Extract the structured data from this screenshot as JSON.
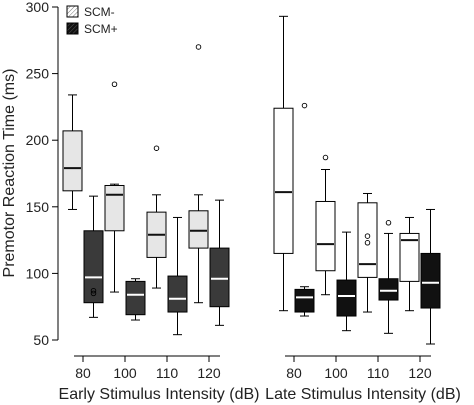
{
  "chart_data": {
    "type": "boxplot",
    "ylabel": "Premotor Reaction Time (ms)",
    "ylim": [
      50,
      300
    ],
    "yticks": [
      50,
      100,
      150,
      200,
      250,
      300
    ],
    "grid": false,
    "legend_position": "top-left",
    "legend": [
      {
        "name": "SCM-",
        "pattern": "hatched-light"
      },
      {
        "name": "SCM+",
        "pattern": "hatched-dark"
      }
    ],
    "panels": [
      {
        "xlabel": "Early Stimulus Intensity (dB)",
        "categories": [
          "80",
          "100",
          "110",
          "120"
        ],
        "series": [
          {
            "name": "SCM-",
            "color": "#e6e6e6",
            "median_color": "#111111",
            "boxes": [
              {
                "whisker_low": 148,
                "q1": 162,
                "median": 179,
                "q3": 207,
                "whisker_high": 234,
                "outliers": []
              },
              {
                "whisker_low": 86,
                "q1": 132,
                "median": 159,
                "q3": 166,
                "whisker_high": 167,
                "outliers": [
                  242
                ]
              },
              {
                "whisker_low": 89,
                "q1": 112,
                "median": 129,
                "q3": 146,
                "whisker_high": 159,
                "outliers": [
                  194
                ]
              },
              {
                "whisker_low": 78,
                "q1": 119,
                "median": 132,
                "q3": 147,
                "whisker_high": 159,
                "outliers": [
                  270
                ]
              }
            ]
          },
          {
            "name": "SCM+",
            "color": "#3a3a3a",
            "median_color": "#ffffff",
            "boxes": [
              {
                "whisker_low": 67,
                "q1": 78,
                "median": 97,
                "q3": 132,
                "whisker_high": 158,
                "outliers": [
                  85,
                  87
                ]
              },
              {
                "whisker_low": 65,
                "q1": 69,
                "median": 84,
                "q3": 94,
                "whisker_high": 96,
                "outliers": []
              },
              {
                "whisker_low": 54,
                "q1": 71,
                "median": 81,
                "q3": 98,
                "whisker_high": 142,
                "outliers": []
              },
              {
                "whisker_low": 61,
                "q1": 75,
                "median": 96,
                "q3": 119,
                "whisker_high": 155,
                "outliers": []
              }
            ]
          }
        ]
      },
      {
        "xlabel": "Late Stimulus Intensity (dB)",
        "categories": [
          "80",
          "100",
          "110",
          "120"
        ],
        "series": [
          {
            "name": "SCM-",
            "color": "#ffffff",
            "median_color": "#111111",
            "boxes": [
              {
                "whisker_low": 72,
                "q1": 115,
                "median": 161,
                "q3": 224,
                "whisker_high": 293,
                "outliers": []
              },
              {
                "whisker_low": 84,
                "q1": 102,
                "median": 122,
                "q3": 154,
                "whisker_high": 178,
                "outliers": [
                  187
                ]
              },
              {
                "whisker_low": 71,
                "q1": 97,
                "median": 107,
                "q3": 153,
                "whisker_high": 160,
                "outliers": [
                  128,
                  123
                ]
              },
              {
                "whisker_low": 72,
                "q1": 94,
                "median": 125,
                "q3": 130,
                "whisker_high": 142,
                "outliers": []
              }
            ]
          },
          {
            "name": "SCM+",
            "color": "#111111",
            "median_color": "#ffffff",
            "boxes": [
              {
                "whisker_low": 68,
                "q1": 71,
                "median": 82,
                "q3": 88,
                "whisker_high": 90,
                "outliers": [
                  226
                ]
              },
              {
                "whisker_low": 57,
                "q1": 68,
                "median": 83,
                "q3": 95,
                "whisker_high": 131,
                "outliers": []
              },
              {
                "whisker_low": 55,
                "q1": 80,
                "median": 87,
                "q3": 96,
                "whisker_high": 130,
                "outliers": [
                  138
                ]
              },
              {
                "whisker_low": 47,
                "q1": 74,
                "median": 93,
                "q3": 115,
                "whisker_high": 148,
                "outliers": []
              }
            ]
          }
        ]
      }
    ]
  }
}
